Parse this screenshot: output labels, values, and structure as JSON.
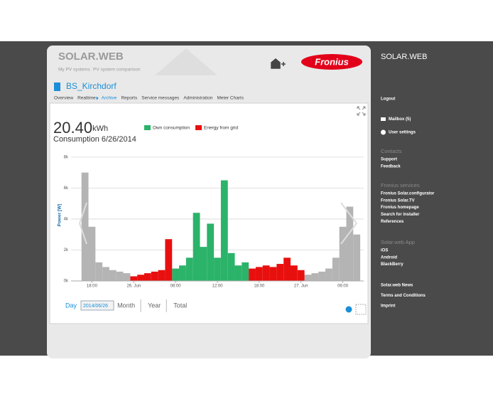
{
  "header": {
    "title": "SOLAR.WEB",
    "links": [
      "My PV systems",
      "PV system comparison"
    ],
    "logo": "Fronius"
  },
  "system": {
    "name": "BS_Kirchdorf",
    "nav": [
      "Overview",
      "Realtime",
      "Archive",
      "Reports",
      "Service messages",
      "Administration",
      "Meter Charts"
    ]
  },
  "summary": {
    "value": "20.40",
    "unit": "kWh",
    "caption": "Consumption 6/26/2014"
  },
  "chart_data": {
    "type": "bar",
    "ylabel": "Power [W]",
    "ylim": [
      0,
      8500
    ],
    "yticks": [
      {
        "value": 0,
        "label": "0k"
      },
      {
        "value": 2000,
        "label": "2k"
      },
      {
        "value": 4000,
        "label": "4k"
      },
      {
        "value": 6000,
        "label": "6k"
      },
      {
        "value": 8000,
        "label": "8k"
      }
    ],
    "xlim": [
      -9,
      33
    ],
    "xticks": [
      {
        "value": -6,
        "label": "18:00"
      },
      {
        "value": 0,
        "label": "26. Jun"
      },
      {
        "value": 6,
        "label": "06:00"
      },
      {
        "value": 12,
        "label": "12:00"
      },
      {
        "value": 18,
        "label": "18:00"
      },
      {
        "value": 24,
        "label": "27. Jun"
      },
      {
        "value": 30,
        "label": "06:00"
      }
    ],
    "grid": true,
    "x": [
      -7,
      -6,
      -5,
      -4,
      -3,
      -2,
      -1,
      0,
      1,
      2,
      3,
      4,
      5,
      6,
      7,
      8,
      9,
      10,
      11,
      12,
      13,
      14,
      15,
      16,
      17,
      18,
      19,
      20,
      21,
      22,
      23,
      24,
      25,
      26,
      27,
      28,
      29,
      30,
      31,
      32
    ],
    "series": [
      {
        "color": "#b4b4b4",
        "values": [
          7000,
          3500,
          1200,
          900,
          700,
          600,
          500,
          null,
          null,
          null,
          null,
          null,
          null,
          null,
          null,
          null,
          null,
          null,
          null,
          null,
          null,
          null,
          null,
          null,
          null,
          null,
          null,
          null,
          null,
          null,
          null,
          null,
          400,
          500,
          600,
          800,
          1500,
          3500,
          4800,
          3000
        ]
      },
      {
        "name": "Own consumption",
        "color": "#2bb36a",
        "values": [
          null,
          null,
          null,
          null,
          null,
          null,
          null,
          null,
          null,
          null,
          null,
          null,
          null,
          800,
          1000,
          1500,
          4400,
          2200,
          3700,
          1500,
          6500,
          1800,
          1000,
          1200,
          null,
          null,
          null,
          null,
          null,
          null,
          null,
          null,
          null,
          null,
          null,
          null,
          null,
          null,
          null,
          null
        ]
      },
      {
        "name": "Energy from grid",
        "color": "#e8100f",
        "values": [
          null,
          null,
          null,
          null,
          null,
          null,
          null,
          300,
          400,
          500,
          600,
          700,
          2700,
          null,
          null,
          null,
          null,
          null,
          null,
          null,
          null,
          null,
          null,
          null,
          800,
          900,
          1000,
          900,
          1100,
          1500,
          1000,
          700,
          null,
          null,
          null,
          null,
          null,
          null,
          null,
          null
        ]
      }
    ]
  },
  "date_nav": {
    "items": [
      "Day",
      "2014/06/26",
      "Month",
      "Year",
      "Total"
    ]
  },
  "sidebar": {
    "title": "SOLAR.WEB",
    "logout": "Logout",
    "account": [
      "Mailbox (5)",
      "User settings"
    ],
    "groups": [
      {
        "heading": "Contacts",
        "items": [
          "Support",
          "Feedback"
        ]
      },
      {
        "heading": "Fronius services",
        "items": [
          "Fronius Solar.configurator",
          "Fronius Solar.TV",
          "Fronius homepage",
          "Search for installer",
          "References"
        ]
      },
      {
        "heading": "Solar.web App",
        "items": [
          "iOS",
          "Android",
          "BlackBerry"
        ]
      }
    ],
    "footer": [
      "Solar.web News",
      "Terms and Conditions",
      "Imprint"
    ]
  }
}
